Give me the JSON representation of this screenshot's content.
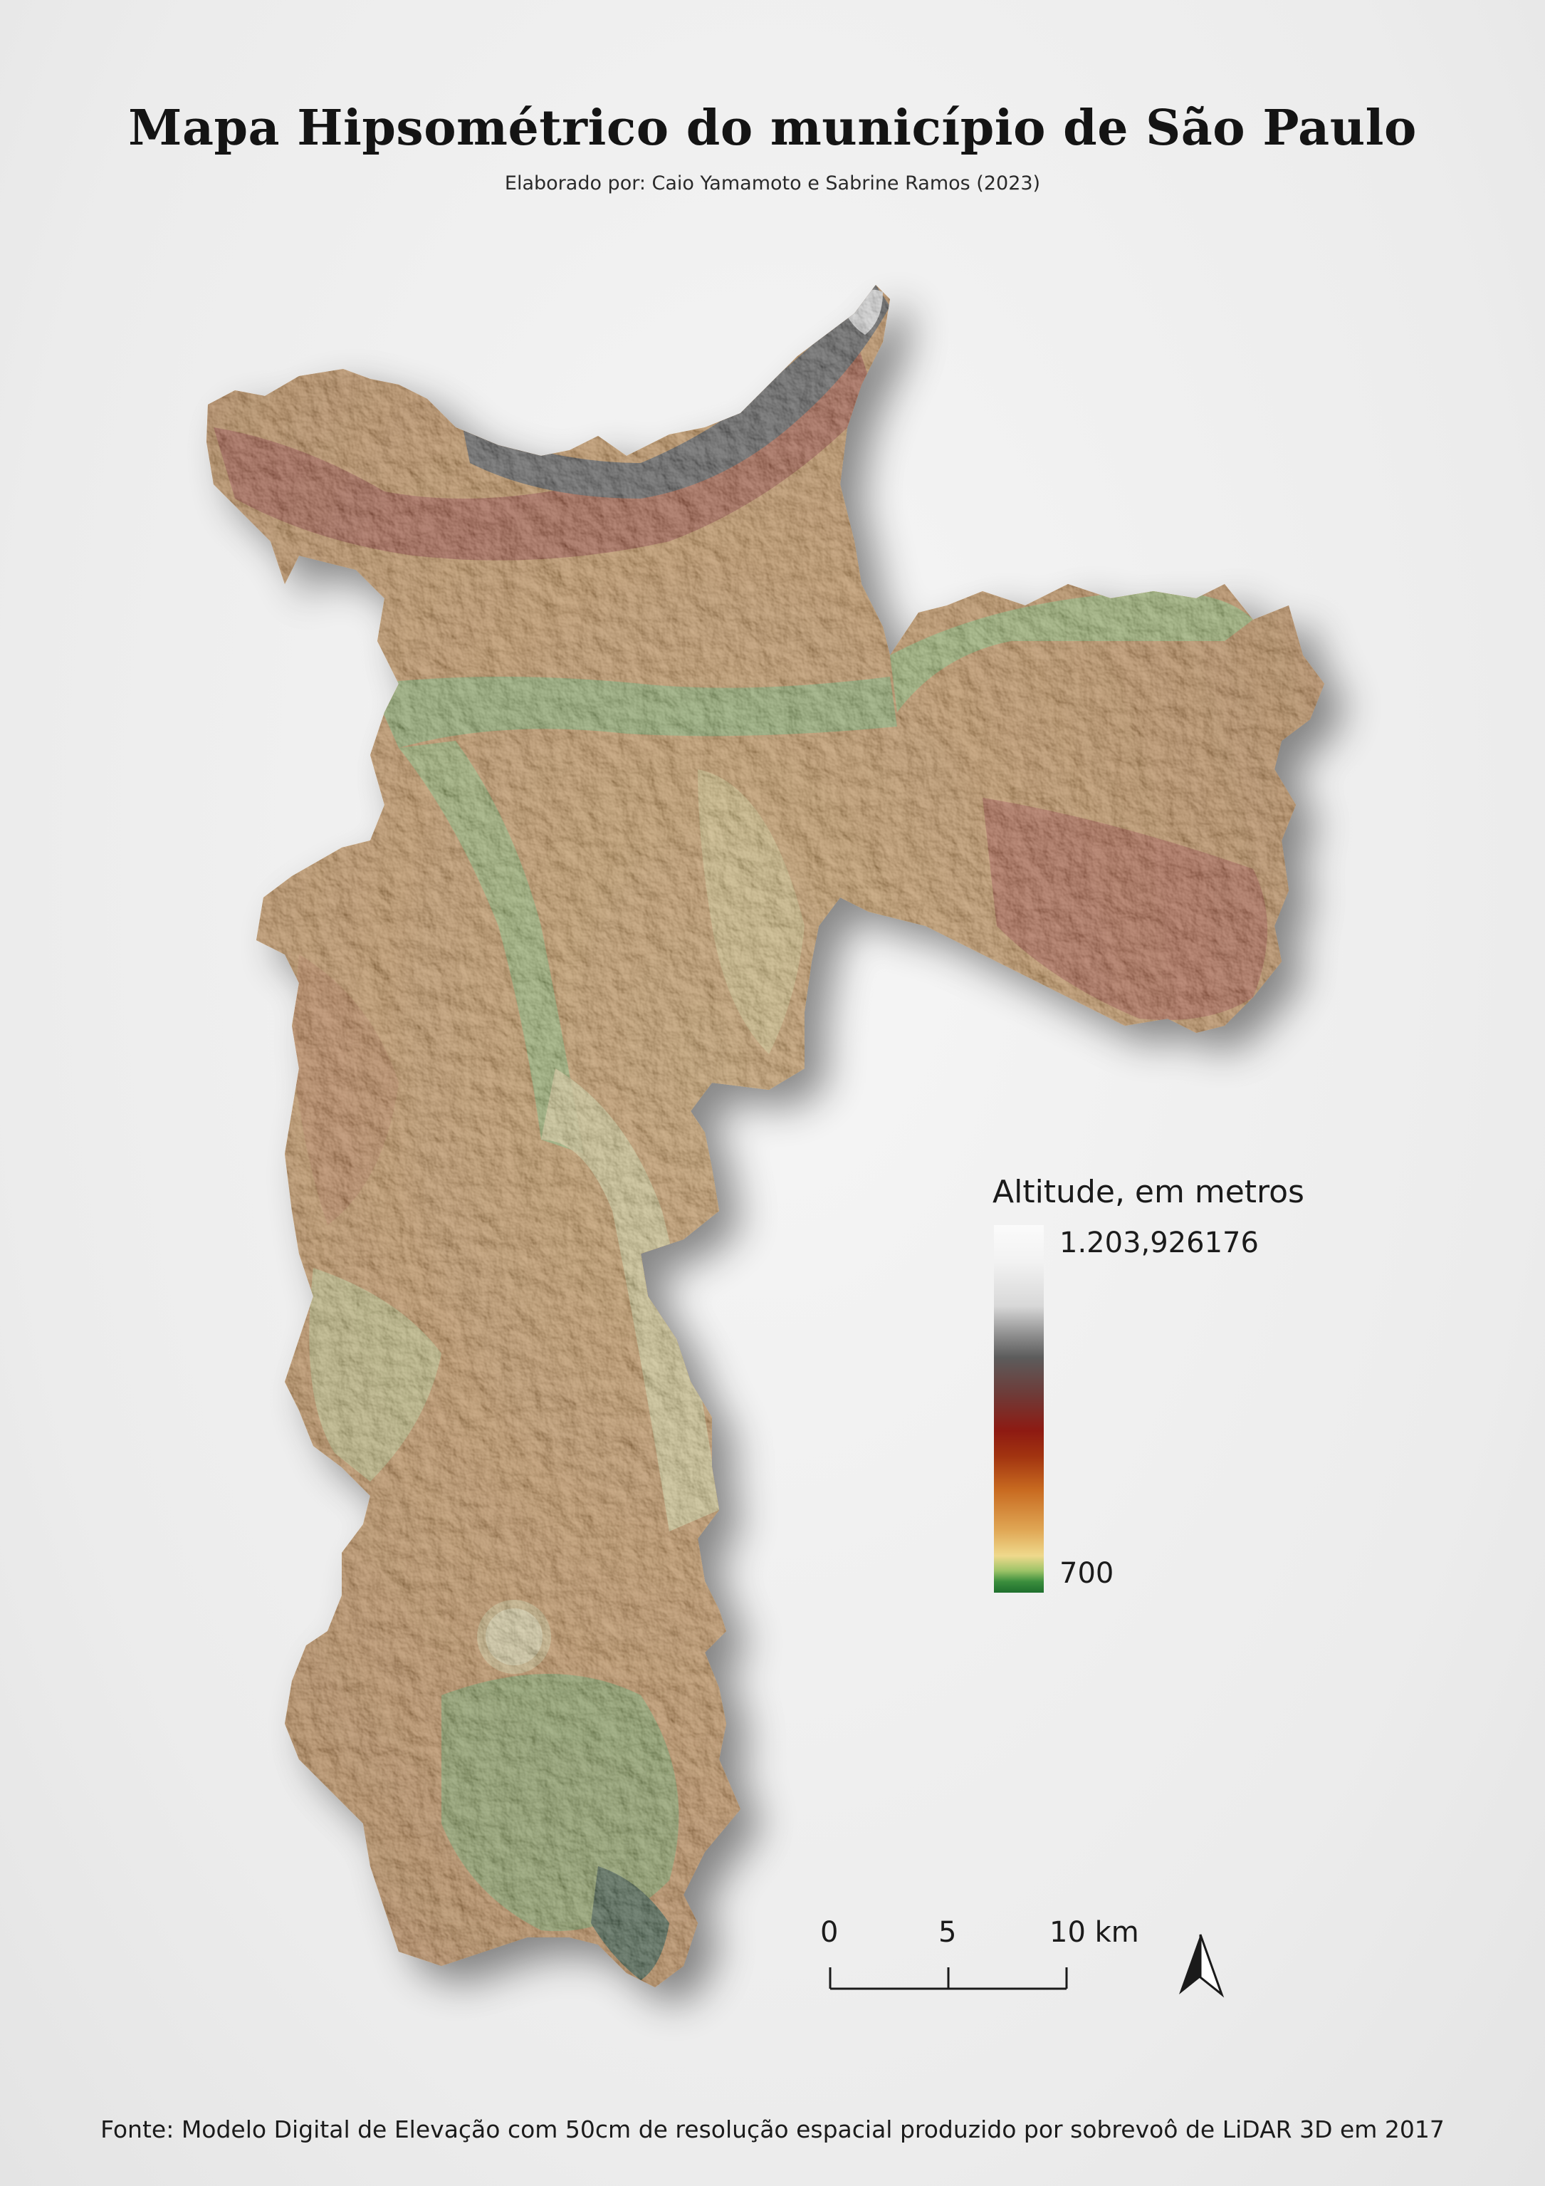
{
  "title": "Mapa Hipsométrico do município de São Paulo",
  "subtitle": "Elaborado por: Caio Yamamoto e Sabrine Ramos (2023)",
  "legend": {
    "title": "Altitude, em metros",
    "max_label": "1.203,926176",
    "min_label": "700",
    "colors": [
      "#fbfbfb",
      "#d8d8d8",
      "#5c5c5c",
      "#8e1a12",
      "#c86a20",
      "#efd98c",
      "#3b8e3d",
      "#1f6f2e"
    ]
  },
  "scale_bar": {
    "labels": [
      "0",
      "5",
      "10 km"
    ]
  },
  "north_arrow": {
    "icon": "north-arrow-icon"
  },
  "footer": "Fonte: Modelo Digital de Elevação com 50cm de resolução espacial produzido por sobrevoô de LiDAR 3D em 2017"
}
